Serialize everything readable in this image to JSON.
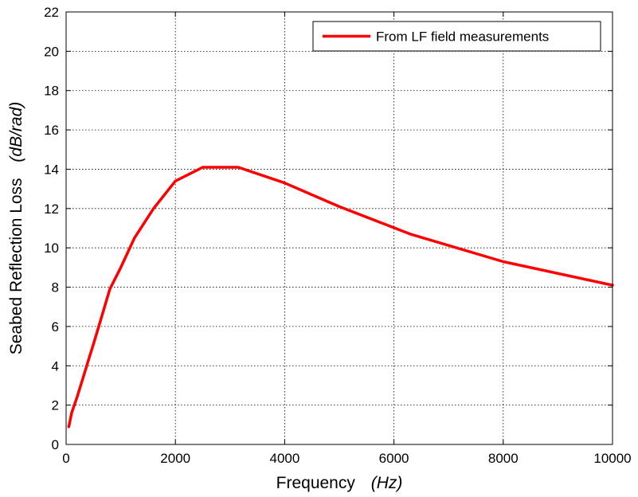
{
  "chart_data": {
    "type": "line",
    "title": "",
    "xlabel": "Frequency",
    "xlabel_unit": "(Hz)",
    "ylabel": "Seabed Reflection Loss",
    "ylabel_unit": "(dB/rad)",
    "xlim": [
      0,
      10000
    ],
    "ylim": [
      0,
      22
    ],
    "xticks": [
      0,
      2000,
      4000,
      6000,
      8000,
      10000
    ],
    "yticks": [
      0,
      2,
      4,
      6,
      8,
      10,
      12,
      14,
      16,
      18,
      20,
      22
    ],
    "grid": true,
    "legend_position": "top-right",
    "series": [
      {
        "name": "From LF field measurements",
        "color": "#ff0000",
        "x": [
          50,
          100,
          200,
          300,
          400,
          500,
          630,
          800,
          1000,
          1250,
          1600,
          2000,
          2500,
          3150,
          4000,
          5000,
          6300,
          8000,
          10000
        ],
        "y": [
          0.9,
          1.6,
          2.4,
          3.3,
          4.2,
          5.1,
          6.3,
          7.9,
          9.0,
          10.5,
          12.0,
          13.4,
          14.1,
          14.1,
          13.3,
          12.1,
          10.7,
          9.3,
          8.1
        ]
      }
    ]
  }
}
